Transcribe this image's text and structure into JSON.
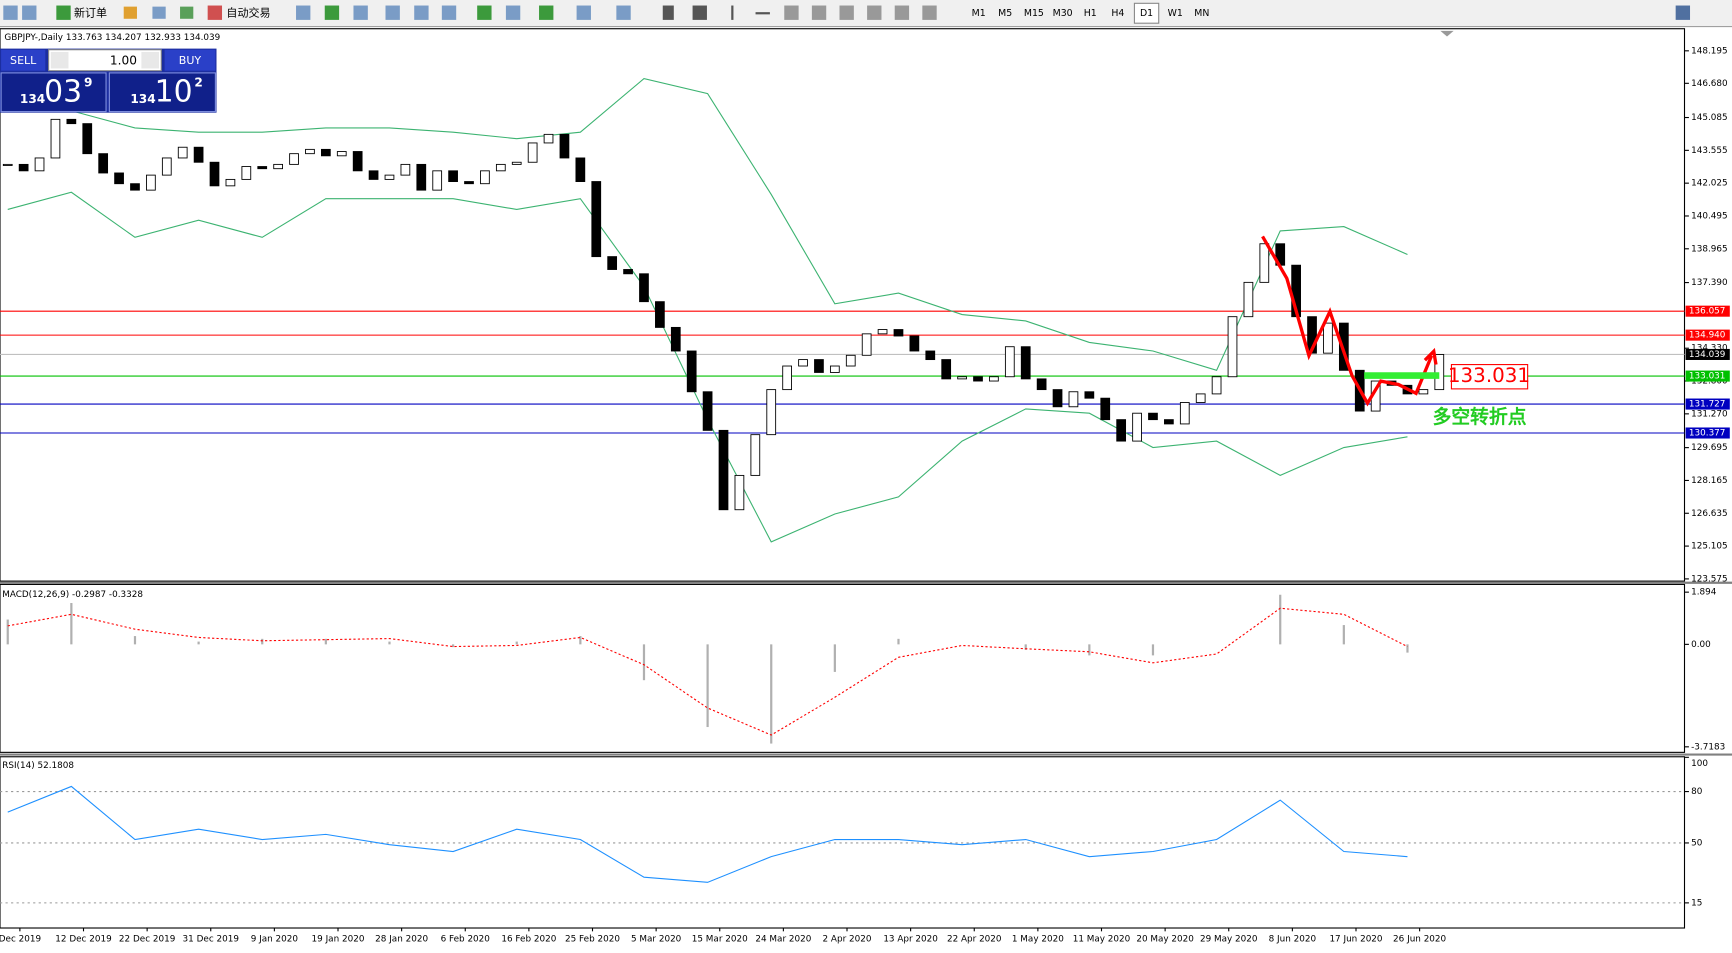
{
  "toolbar": {
    "buttons": [
      "新订单",
      "自动交易"
    ],
    "timeframes": [
      "M1",
      "M5",
      "M15",
      "M30",
      "H1",
      "H4",
      "D1",
      "W1",
      "MN"
    ],
    "active_timeframe": "D1"
  },
  "trade_panel": {
    "sell": "SELL",
    "buy": "BUY",
    "lots": "1.00",
    "bid": {
      "big": "134",
      "mid": "03",
      "sup": "9"
    },
    "ask": {
      "big": "134",
      "mid": "10",
      "sup": "2"
    }
  },
  "chart_data": {
    "type": "candlestick",
    "title": "GBPJPY-,Daily 133.763 134.207 132.933 134.039",
    "closes": [
      142.9,
      142.6,
      143.2,
      145.0,
      144.8,
      143.4,
      142.5,
      142.0,
      141.7,
      142.4,
      143.2,
      143.7,
      143.0,
      141.9,
      142.2,
      142.8,
      142.7,
      142.9,
      143.4,
      143.6,
      143.3,
      143.5,
      142.6,
      142.2,
      142.4,
      142.9,
      141.7,
      142.6,
      142.1,
      142.0,
      142.6,
      142.9,
      143.0,
      143.9,
      144.3,
      143.2,
      142.1,
      138.6,
      138.0,
      137.8,
      136.5,
      135.3,
      134.2,
      132.3,
      130.5,
      126.8,
      128.4,
      130.3,
      132.4,
      133.5,
      133.8,
      133.2,
      133.5,
      134.0,
      135.0,
      135.2,
      134.9,
      134.2,
      133.8,
      132.9,
      133.0,
      132.8,
      133.0,
      134.4,
      132.9,
      132.4,
      131.6,
      132.3,
      132.0,
      131.0,
      130.0,
      131.3,
      131.0,
      130.8,
      131.8,
      132.2,
      133.0,
      135.8,
      137.4,
      139.2,
      138.2,
      135.8,
      134.1,
      135.5,
      133.3,
      131.4,
      132.8,
      132.6,
      132.2,
      132.4,
      134.039
    ],
    "ylim": [
      123.575,
      148.195
    ],
    "yticks": [
      148.195,
      {
        "value": 146.68,
        "label": "146.680"
      },
      145.085,
      143.555,
      142.025,
      140.495,
      138.965,
      {
        "value": 137.39,
        "label": "137.390"
      },
      {
        "value": 134.33,
        "label": "134.330"
      },
      {
        "value": 132.8,
        "label": "132.800"
      },
      {
        "value": 131.27,
        "label": "131.270"
      },
      129.695,
      128.165,
      126.635,
      125.105,
      123.575
    ],
    "date_labels": [
      "Dec 2019",
      "12 Dec 2019",
      "22 Dec 2019",
      "31 Dec 2019",
      "9 Jan 2020",
      "19 Jan 2020",
      "28 Jan 2020",
      "6 Feb 2020",
      "16 Feb 2020",
      "25 Feb 2020",
      "5 Mar 2020",
      "15 Mar 2020",
      "24 Mar 2020",
      "2 Apr 2020",
      "13 Apr 2020",
      "22 Apr 2020",
      "1 May 2020",
      "11 May 2020",
      "20 May 2020",
      "29 May 2020",
      "8 Jun 2020",
      "17 Jun 2020",
      "26 Jun 2020"
    ],
    "levels": [
      {
        "value": 136.057,
        "label": "136.057",
        "color": "#ff0000"
      },
      {
        "value": 134.94,
        "label": "134.940",
        "color": "#ff0000"
      },
      {
        "value": 134.039,
        "label": "134.039",
        "color": "#c0c0c0"
      },
      {
        "value": 133.031,
        "label": "133.031",
        "color": "#00c000"
      },
      {
        "value": 131.727,
        "label": "131.727",
        "color": "#0000c0"
      },
      {
        "value": 130.377,
        "label": "130.377",
        "color": "#0000c0"
      }
    ],
    "bollinger": {
      "color": "#3cb371",
      "upper": [
        145.93,
        145.4,
        144.6,
        144.4,
        144.4,
        144.6,
        144.6,
        144.4,
        144.1,
        144.4,
        146.9,
        146.2,
        141.5,
        136.4,
        136.9,
        135.9,
        135.6,
        134.6,
        134.2,
        133.3,
        139.8,
        140.0,
        138.7
      ],
      "lower": [
        140.8,
        141.6,
        139.5,
        140.3,
        139.5,
        141.3,
        141.3,
        141.3,
        140.8,
        141.3,
        137.2,
        131.0,
        125.3,
        126.6,
        127.4,
        130.0,
        131.5,
        131.3,
        129.7,
        130.0,
        128.4,
        129.7,
        130.2
      ]
    },
    "annotations": {
      "box": "133.031",
      "text": "多空转折点"
    }
  },
  "macd": {
    "title": "MACD(12,26,9) -0.2987 -0.3328",
    "ylim": [
      -3.7183,
      1.894
    ],
    "yticks": [
      1.894,
      {
        "value": 0,
        "label": "0.00"
      },
      -3.7183
    ],
    "histogram": [
      0.9,
      1.5,
      0.3,
      0.1,
      0.2,
      0.2,
      0.1,
      -0.1,
      0.1,
      0.3,
      -1.3,
      -3.0,
      -3.6,
      -1.0,
      0.2,
      0.0,
      -0.2,
      -0.4,
      -0.4,
      0.0,
      1.8,
      0.7,
      -0.3
    ],
    "signal": [
      0.67,
      1.09,
      0.55,
      0.25,
      0.13,
      0.17,
      0.21,
      -0.08,
      -0.04,
      0.25,
      -0.74,
      -2.31,
      -3.29,
      -1.92,
      -0.47,
      -0.04,
      -0.16,
      -0.27,
      -0.67,
      -0.35,
      1.31,
      1.09,
      -0.08
    ]
  },
  "rsi": {
    "title": "RSI(14) 52.1808",
    "ylim": [
      0,
      100
    ],
    "yticks": [
      100,
      80,
      50,
      15
    ],
    "grid": [
      80,
      50,
      15
    ],
    "values": [
      68,
      83,
      52,
      58,
      52,
      55,
      49,
      45,
      58,
      52,
      30,
      27,
      42,
      52,
      52,
      49,
      52,
      42,
      45,
      52,
      75,
      45,
      42
    ]
  }
}
